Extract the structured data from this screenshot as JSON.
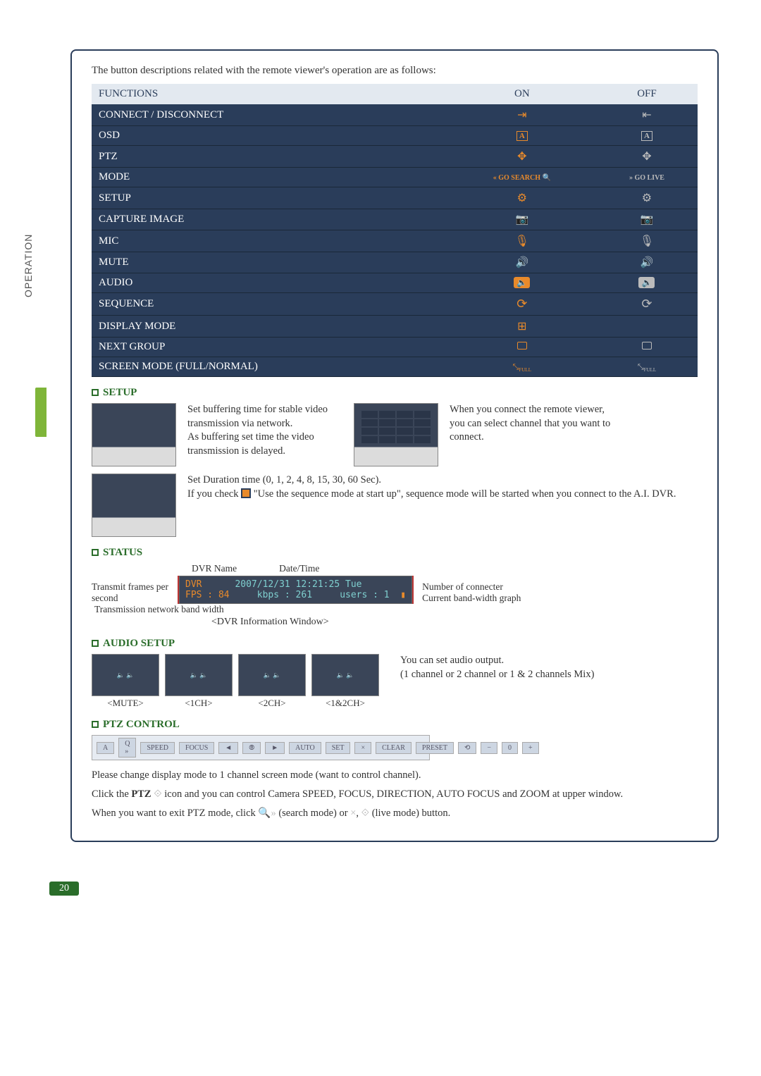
{
  "page": {
    "side_label": "OPERATION",
    "page_number": "20"
  },
  "intro": "The button descriptions related with the remote viewer's operation are as follows:",
  "table": {
    "headers": {
      "func": "FUNCTIONS",
      "on": "ON",
      "off": "OFF"
    },
    "rows": [
      {
        "name": "CONNECT / DISCONNECT",
        "on_icon": "connect-on",
        "off_icon": "connect-off"
      },
      {
        "name": "OSD",
        "on_icon": "osd-on",
        "off_icon": "osd-off"
      },
      {
        "name": "PTZ",
        "on_icon": "ptz-on",
        "off_icon": "ptz-off"
      },
      {
        "name": "MODE",
        "on_icon": "mode-on",
        "on_text": "« GO SEARCH",
        "off_icon": "mode-off",
        "off_text": "GO LIVE »"
      },
      {
        "name": "SETUP",
        "on_icon": "gear-on",
        "off_icon": "gear-off"
      },
      {
        "name": "CAPTURE IMAGE",
        "on_icon": "camera-on",
        "off_icon": "camera-off"
      },
      {
        "name": "MIC",
        "on_icon": "mic-on",
        "off_icon": "mic-off"
      },
      {
        "name": "MUTE",
        "on_icon": "mute-on",
        "off_icon": "mute-off"
      },
      {
        "name": "AUDIO",
        "on_icon": "speaker-on",
        "off_icon": "speaker-off"
      },
      {
        "name": "SEQUENCE",
        "on_icon": "seq-on",
        "off_icon": "seq-off"
      },
      {
        "name": "DISPLAY MODE",
        "on_icon": "grid-on",
        "off_icon": ""
      },
      {
        "name": "NEXT GROUP",
        "on_icon": "next-on",
        "off_icon": "next-off"
      },
      {
        "name": "SCREEN MODE (FULL/NORMAL)",
        "on_icon": "full-on",
        "off_icon": "full-off"
      }
    ],
    "colors": {
      "row_bg": "#2a3d5a",
      "row_sep": "#1a2838",
      "header_bg": "#e3e9f0",
      "on_color": "#e88a2b",
      "off_color": "#bbbbbb",
      "mode_text_color": "#e88a2b"
    }
  },
  "setup": {
    "heading": "SETUP",
    "p1": "Set buffering time for stable video transmission via network.\nAs buffering set time the video transmission is delayed.",
    "p2": "When you connect the remote viewer, you can select channel that you want to connect.",
    "p3a": "Set Duration time (0, 1, 2, 4, 8, 15, 30, 60 Sec).",
    "p3b": "If you check",
    "p3c": "\"Use the sequence mode at start up\", sequence mode will be  started when you connect to the A.I. DVR."
  },
  "status": {
    "heading": "STATUS",
    "labels": {
      "dvr_name": "DVR Name",
      "datetime": "Date/Time",
      "fps": "Transmit frames per second",
      "bandwidth": "Transmission network band width",
      "users": "Number of connecter",
      "graph": "Current band-width graph"
    },
    "window": {
      "l1_left": "DVR",
      "l1_right": "2007/12/31 12:21:25 Tue",
      "l2_left": "FPS : 84",
      "l2_mid": "kbps : 261",
      "l2_right": "users : 1"
    },
    "caption": "<DVR Information Window>"
  },
  "audio": {
    "heading": "AUDIO SETUP",
    "captions": [
      "<MUTE>",
      "<1CH>",
      "<2CH>",
      "<1&2CH>"
    ],
    "desc": "You can set audio output.\n(1 channel or 2 channel or 1 & 2 channels Mix)"
  },
  "ptz": {
    "heading": "PTZ CONTROL",
    "bar": [
      "A",
      "Q »",
      "SPEED",
      "FOCUS",
      "◄",
      "⦾",
      "►",
      "AUTO",
      "SET",
      "×",
      "CLEAR",
      "PRESET",
      "⟲",
      "−",
      "0",
      "+"
    ],
    "p1": "Please change display mode to 1 channel screen mode (want to control channel).",
    "p2a": "Click the ",
    "p2b": "PTZ",
    "p2c": " icon and you can control Camera SPEED, FOCUS, DIRECTION, AUTO FOCUS and ZOOM at upper window.",
    "p3a": "When you want to exit PTZ mode, click  ",
    "p3b": " (search mode) or ",
    "p3c": " (live mode) button."
  }
}
